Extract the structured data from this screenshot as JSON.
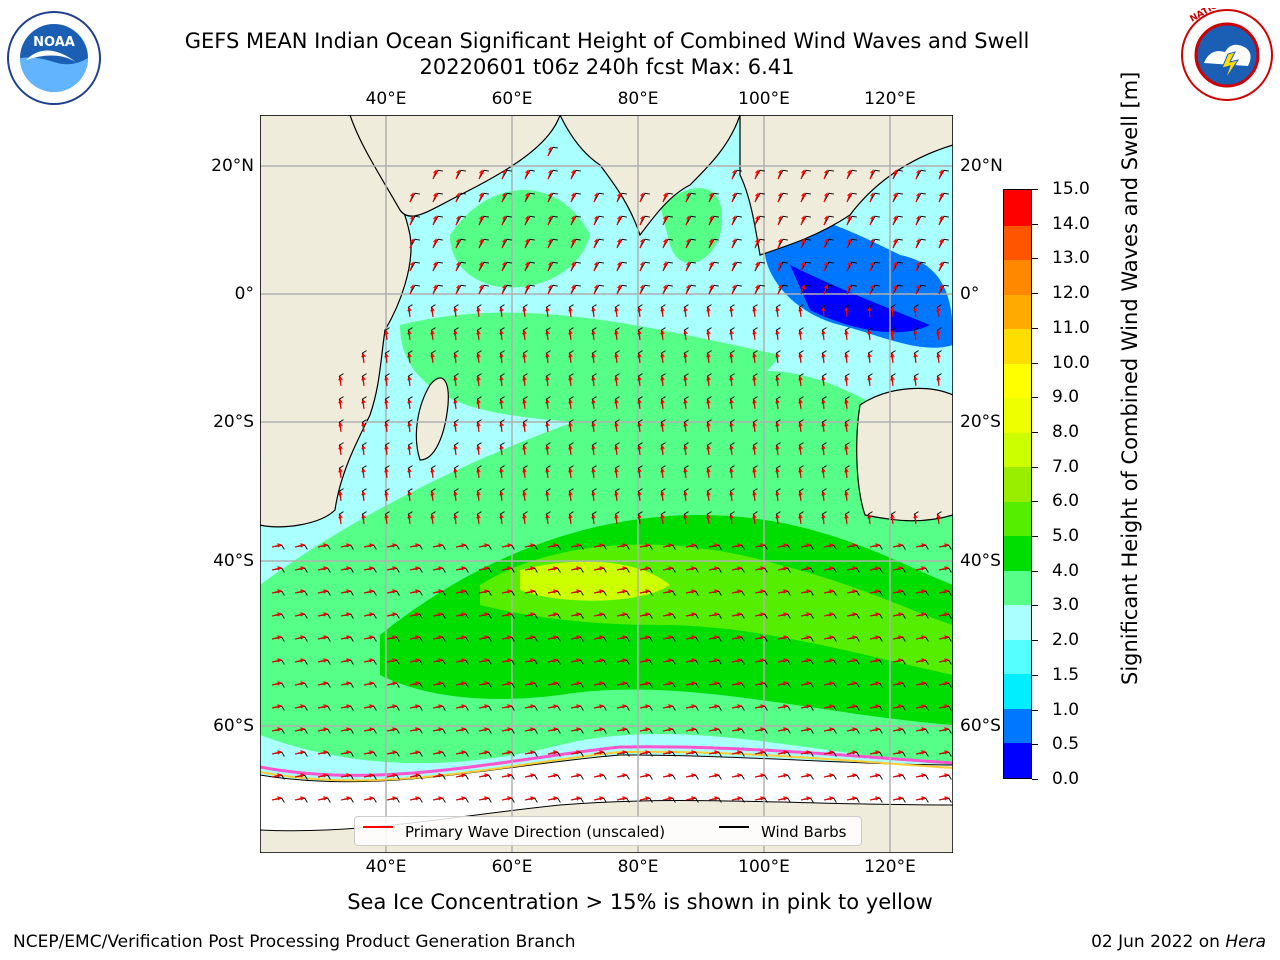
{
  "header": {
    "title_line1": "GEFS MEAN Indian Ocean Significant Height of Combined Wind Waves and Swell",
    "title_line2": "20220601 t06z 240h fcst   Max: 6.41"
  },
  "logos": {
    "left": {
      "name": "noaa-logo",
      "text": "NOAA",
      "ring": "NATIONAL OCEANIC AND ATMOSPHERIC ADMINISTRATION · U.S. DEPARTMENT OF COMMERCE"
    },
    "right": {
      "name": "nws-logo",
      "ring": "NATIONAL WEATHER SERVICE"
    }
  },
  "map": {
    "lon_ticks": [
      "40°E",
      "60°E",
      "80°E",
      "100°E",
      "120°E"
    ],
    "lat_ticks": [
      "20°N",
      "0°",
      "20°S",
      "40°S",
      "60°S"
    ],
    "colors": {
      "land": "#efecdc",
      "coast": "#000000",
      "ice": "#ffffff",
      "gridline": "#b0b0b0",
      "arrow": "#ff0000",
      "barb": "#000000"
    }
  },
  "colorbar": {
    "label": "Significant Height of Combined Wind Waves and Swell [m]",
    "tick_labels": [
      "0.0",
      "0.5",
      "1.0",
      "1.5",
      "2.0",
      "3.0",
      "4.0",
      "5.0",
      "6.0",
      "7.0",
      "8.0",
      "9.0",
      "10.0",
      "11.0",
      "12.0",
      "13.0",
      "14.0",
      "15.0"
    ],
    "colors": [
      "#0000ff",
      "#0077ff",
      "#00eeff",
      "#55ffff",
      "#aaffff",
      "#55ff88",
      "#00dd00",
      "#55ee00",
      "#99ee00",
      "#ccff00",
      "#eeff00",
      "#ffff00",
      "#ffdd00",
      "#ffaa00",
      "#ff8800",
      "#ff5500",
      "#ff0000"
    ]
  },
  "legend": {
    "wave_label": "Primary Wave Direction (unscaled)",
    "wind_label": "Wind Barbs",
    "wave_color": "#ff0000",
    "wind_color": "#000000"
  },
  "note": "Sea Ice Concentration > 15% is shown in pink to yellow",
  "footer": {
    "left": "NCEP/EMC/Verification Post Processing Product Generation Branch",
    "date": "02 Jun 2022",
    "on": "on",
    "host": "Hera"
  }
}
